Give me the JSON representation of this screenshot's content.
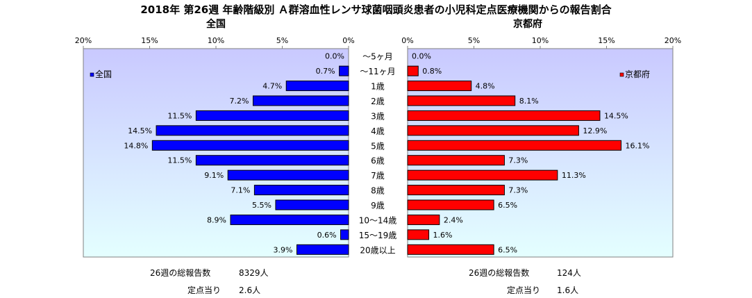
{
  "title": "2018年 第26週 年齢階級別 Ａ群溶血性レンサ球菌咽頭炎患者の小児科定点医療機関からの報告割合",
  "left_subtitle": "全国",
  "right_subtitle": "京都府",
  "stats": {
    "left_total_label": "26週の総報告数",
    "left_total_value": "8329人",
    "left_per_label": "定点当り",
    "left_per_value": "2.6人",
    "right_total_label": "26週の総報告数",
    "right_total_value": "124人",
    "right_per_label": "定点当り",
    "right_per_value": "1.6人"
  },
  "colors": {
    "left_bar": "#0000ff",
    "right_bar": "#ff0000",
    "plot_bg_top": "#c9c9ff",
    "plot_bg_bottom": "#e4ffff"
  },
  "chart_data": [
    {
      "type": "bar",
      "orientation": "horizontal",
      "direction": "leftward",
      "series": [
        {
          "name": "全国",
          "values": [
            0.0,
            0.7,
            4.7,
            7.2,
            11.5,
            14.5,
            14.8,
            11.5,
            9.1,
            7.1,
            5.5,
            8.9,
            0.6,
            3.9
          ]
        }
      ],
      "categories": [
        "～5ヶ月",
        "～11ヶ月",
        "1歳",
        "2歳",
        "3歳",
        "4歳",
        "5歳",
        "6歳",
        "7歳",
        "8歳",
        "9歳",
        "10～14歳",
        "15～19歳",
        "20歳以上"
      ],
      "data_labels": [
        "0.0%",
        "0.7%",
        "4.7%",
        "7.2%",
        "11.5%",
        "14.5%",
        "14.8%",
        "11.5%",
        "9.1%",
        "7.1%",
        "5.5%",
        "8.9%",
        "0.6%",
        "3.9%"
      ],
      "xlim": [
        0,
        20
      ],
      "x_ticks": [
        "20%",
        "15%",
        "10%",
        "5%",
        "0%"
      ],
      "legend": "top-left"
    },
    {
      "type": "bar",
      "orientation": "horizontal",
      "direction": "rightward",
      "series": [
        {
          "name": "京都府",
          "values": [
            0.0,
            0.8,
            4.8,
            8.1,
            14.5,
            12.9,
            16.1,
            7.3,
            11.3,
            7.3,
            6.5,
            2.4,
            1.6,
            6.5
          ]
        }
      ],
      "categories": [
        "～5ヶ月",
        "～11ヶ月",
        "1歳",
        "2歳",
        "3歳",
        "4歳",
        "5歳",
        "6歳",
        "7歳",
        "8歳",
        "9歳",
        "10～14歳",
        "15～19歳",
        "20歳以上"
      ],
      "data_labels": [
        "0.0%",
        "0.8%",
        "4.8%",
        "8.1%",
        "14.5%",
        "12.9%",
        "16.1%",
        "7.3%",
        "11.3%",
        "7.3%",
        "6.5%",
        "2.4%",
        "1.6%",
        "6.5%"
      ],
      "xlim": [
        0,
        20
      ],
      "x_ticks": [
        "0%",
        "5%",
        "10%",
        "15%",
        "20%"
      ],
      "legend": "top-right"
    }
  ]
}
